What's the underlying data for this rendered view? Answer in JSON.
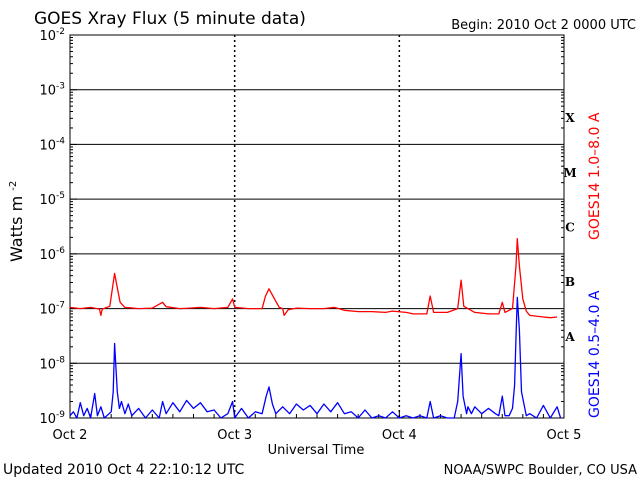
{
  "chart_data": {
    "type": "line",
    "title": "GOES Xray Flux (5 minute data)",
    "begin_label": "Begin:  2010 Oct 2 0000 UTC",
    "xlabel": "Universal Time",
    "ylabel": "Watts m",
    "ylabel_superscript": "-2",
    "x_range_hours": [
      0,
      72
    ],
    "x_ticks": [
      {
        "hour": 0,
        "label": "Oct 2"
      },
      {
        "hour": 24,
        "label": "Oct 3"
      },
      {
        "hour": 48,
        "label": "Oct 4"
      },
      {
        "hour": 72,
        "label": "Oct 5"
      }
    ],
    "y_scale": "log",
    "ylim": [
      1e-09,
      0.01
    ],
    "y_tick_labels": [
      {
        "exp": -2,
        "base": "10",
        "sup": "-2"
      },
      {
        "exp": -3,
        "base": "10",
        "sup": "-3"
      },
      {
        "exp": -4,
        "base": "10",
        "sup": "-4"
      },
      {
        "exp": -5,
        "base": "10",
        "sup": "-5"
      },
      {
        "exp": -6,
        "base": "10",
        "sup": "-6"
      },
      {
        "exp": -7,
        "base": "10",
        "sup": "-7"
      },
      {
        "exp": -8,
        "base": "10",
        "sup": "-8"
      },
      {
        "exp": -9,
        "base": "10",
        "sup": "-9"
      }
    ],
    "flare_classes": [
      {
        "label": "X",
        "exp": -3.5
      },
      {
        "label": "M",
        "exp": -4.5
      },
      {
        "label": "C",
        "exp": -5.5
      },
      {
        "label": "B",
        "exp": -6.5
      },
      {
        "label": "A",
        "exp": -7.5
      }
    ],
    "grid": true,
    "series": [
      {
        "name": "GOES14 1.0–8.0 A",
        "color": "#ff0000",
        "points": [
          [
            0,
            1.05e-07
          ],
          [
            1.5,
            1e-07
          ],
          [
            3,
            1.05e-07
          ],
          [
            4.3,
            9.8e-08
          ],
          [
            4.5,
            7.5e-08
          ],
          [
            4.7,
            9.8e-08
          ],
          [
            5.8,
            1.1e-07
          ],
          [
            6.5,
            4.4e-07
          ],
          [
            6.9,
            2.4e-07
          ],
          [
            7.3,
            1.3e-07
          ],
          [
            8,
            1.05e-07
          ],
          [
            10,
            1e-07
          ],
          [
            12,
            1.02e-07
          ],
          [
            13.5,
            1.3e-07
          ],
          [
            14,
            1.08e-07
          ],
          [
            16,
            1e-07
          ],
          [
            17.5,
            1.02e-07
          ],
          [
            19,
            1.05e-07
          ],
          [
            21,
            1e-07
          ],
          [
            23,
            1.05e-07
          ],
          [
            23.7,
            1.5e-07
          ],
          [
            24,
            1.05e-07
          ],
          [
            26,
            1e-07
          ],
          [
            28,
            1e-07
          ],
          [
            28.5,
            1.7e-07
          ],
          [
            29,
            2.3e-07
          ],
          [
            29.8,
            1.5e-07
          ],
          [
            30.5,
            1.05e-07
          ],
          [
            31,
            1e-07
          ],
          [
            31.2,
            7.5e-08
          ],
          [
            31.8,
            9.5e-08
          ],
          [
            33,
            1.02e-07
          ],
          [
            35,
            1e-07
          ],
          [
            37,
            1e-07
          ],
          [
            38.5,
            1.05e-07
          ],
          [
            40,
            9.3e-08
          ],
          [
            42,
            8.8e-08
          ],
          [
            44,
            8.8e-08
          ],
          [
            46,
            8.5e-08
          ],
          [
            47,
            9e-08
          ],
          [
            49,
            8.5e-08
          ],
          [
            50,
            8e-08
          ],
          [
            52,
            8e-08
          ],
          [
            52.5,
            1.7e-07
          ],
          [
            53,
            8.5e-08
          ],
          [
            55,
            8.5e-08
          ],
          [
            56.5,
            1e-07
          ],
          [
            57,
            3.3e-07
          ],
          [
            57.4,
            1.1e-07
          ],
          [
            59,
            8.5e-08
          ],
          [
            61,
            8e-08
          ],
          [
            62.5,
            8e-08
          ],
          [
            63,
            1.3e-07
          ],
          [
            63.4,
            8.5e-08
          ],
          [
            64.5,
            1e-07
          ],
          [
            65,
            6e-07
          ],
          [
            65.2,
            1.9e-06
          ],
          [
            65.5,
            6e-07
          ],
          [
            66,
            1.5e-07
          ],
          [
            66.5,
            9e-08
          ],
          [
            67,
            7.5e-08
          ],
          [
            69,
            7e-08
          ],
          [
            70,
            6.8e-08
          ],
          [
            71,
            7e-08
          ]
        ]
      },
      {
        "name": "GOES14 0.5–4.0 A",
        "color": "#0000ff",
        "points": [
          [
            0,
            1.1e-09
          ],
          [
            0.5,
            1.3e-09
          ],
          [
            1,
            1e-09
          ],
          [
            1.5,
            1.9e-09
          ],
          [
            2,
            1.1e-09
          ],
          [
            2.5,
            1.5e-09
          ],
          [
            3,
            1e-09
          ],
          [
            3.6,
            2.8e-09
          ],
          [
            4,
            1.1e-09
          ],
          [
            4.5,
            1.6e-09
          ],
          [
            5,
            1e-09
          ],
          [
            6,
            1.3e-09
          ],
          [
            6.3,
            3e-09
          ],
          [
            6.5,
            2.3e-08
          ],
          [
            6.9,
            3e-09
          ],
          [
            7.2,
            1.5e-09
          ],
          [
            7.5,
            2e-09
          ],
          [
            8,
            1.2e-09
          ],
          [
            8.5,
            1.8e-09
          ],
          [
            9,
            1.1e-09
          ],
          [
            10,
            1.5e-09
          ],
          [
            11,
            1e-09
          ],
          [
            12,
            1.4e-09
          ],
          [
            13,
            1e-09
          ],
          [
            13.5,
            2e-09
          ],
          [
            14,
            1.2e-09
          ],
          [
            15,
            1.9e-09
          ],
          [
            16,
            1.3e-09
          ],
          [
            17,
            2.1e-09
          ],
          [
            18,
            1.5e-09
          ],
          [
            19,
            1.9e-09
          ],
          [
            20,
            1.3e-09
          ],
          [
            21,
            1.4e-09
          ],
          [
            22,
            1e-09
          ],
          [
            23,
            1.2e-09
          ],
          [
            23.7,
            2e-09
          ],
          [
            24,
            1e-09
          ],
          [
            25,
            1.5e-09
          ],
          [
            26,
            1e-09
          ],
          [
            27,
            1.3e-09
          ],
          [
            28,
            1.2e-09
          ],
          [
            28.6,
            2.5e-09
          ],
          [
            29,
            3.7e-09
          ],
          [
            29.5,
            1.8e-09
          ],
          [
            30,
            1.2e-09
          ],
          [
            31,
            1.6e-09
          ],
          [
            32,
            1.2e-09
          ],
          [
            33,
            1.8e-09
          ],
          [
            34,
            1.4e-09
          ],
          [
            35,
            1.7e-09
          ],
          [
            36,
            1.2e-09
          ],
          [
            37,
            1.8e-09
          ],
          [
            38,
            1.3e-09
          ],
          [
            39,
            1.9e-09
          ],
          [
            40,
            1.2e-09
          ],
          [
            41,
            1.3e-09
          ],
          [
            42,
            1e-09
          ],
          [
            43,
            1.4e-09
          ],
          [
            44,
            1e-09
          ],
          [
            45,
            1.1e-09
          ],
          [
            46,
            1e-09
          ],
          [
            47,
            1.3e-09
          ],
          [
            48,
            1e-09
          ],
          [
            49,
            1.1e-09
          ],
          [
            50,
            1e-09
          ],
          [
            51,
            1.1e-09
          ],
          [
            52,
            1e-09
          ],
          [
            52.5,
            2e-09
          ],
          [
            53,
            1e-09
          ],
          [
            54,
            1.1e-09
          ],
          [
            55,
            1e-09
          ],
          [
            56,
            1e-09
          ],
          [
            56.5,
            2e-09
          ],
          [
            57,
            1.5e-08
          ],
          [
            57.3,
            2.5e-09
          ],
          [
            57.8,
            1.2e-09
          ],
          [
            58,
            1.6e-09
          ],
          [
            58.5,
            1.2e-09
          ],
          [
            59,
            1.6e-09
          ],
          [
            60,
            1.2e-09
          ],
          [
            61,
            1.5e-09
          ],
          [
            62,
            1.2e-09
          ],
          [
            62.5,
            1.1e-09
          ],
          [
            63,
            2.5e-09
          ],
          [
            63.4,
            1.1e-09
          ],
          [
            64,
            1.1e-09
          ],
          [
            64.5,
            1.5e-09
          ],
          [
            64.8,
            4e-09
          ],
          [
            65,
            3e-08
          ],
          [
            65.2,
            1.6e-07
          ],
          [
            65.5,
            4e-08
          ],
          [
            65.8,
            3e-09
          ],
          [
            66.5,
            1.1e-09
          ],
          [
            67,
            1.2e-09
          ],
          [
            68,
            1e-09
          ],
          [
            69,
            1.7e-09
          ],
          [
            70,
            1e-09
          ],
          [
            71,
            1.6e-09
          ],
          [
            71.5,
            1e-09
          ]
        ]
      }
    ]
  },
  "footer": {
    "updated": "Updated 2010 Oct  4 22:10:12 UTC",
    "credit": "NOAA/SWPC Boulder, CO USA"
  }
}
